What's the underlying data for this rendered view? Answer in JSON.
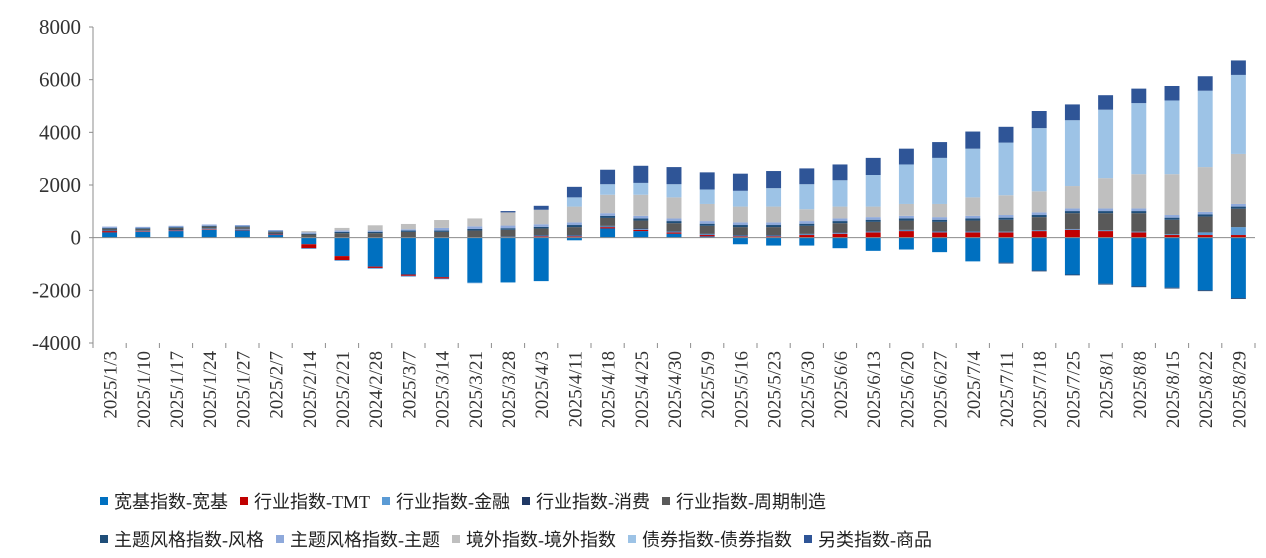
{
  "chart_data": {
    "type": "bar",
    "stacked": true,
    "categories": [
      "2025/1/3",
      "2025/1/10",
      "2025/1/17",
      "2025/1/24",
      "2025/1/27",
      "2025/2/7",
      "2025/2/14",
      "2025/2/21",
      "2024/2/28",
      "2025/3/7",
      "2025/3/14",
      "2025/3/21",
      "2025/3/28",
      "2025/4/3",
      "2025/4/11",
      "2025/4/18",
      "2025/4/25",
      "2025/4/30",
      "2025/5/9",
      "2025/5/16",
      "2025/5/23",
      "2025/5/30",
      "2025/6/6",
      "2025/6/13",
      "2025/6/20",
      "2025/6/27",
      "2025/7/4",
      "2025/7/11",
      "2025/7/18",
      "2025/7/25",
      "2025/8/1",
      "2025/8/8",
      "2025/8/15",
      "2025/8/22",
      "2025/8/29"
    ],
    "ylim": [
      -4000,
      8000
    ],
    "yticks": [
      -4000,
      -2000,
      0,
      2000,
      4000,
      6000,
      8000
    ],
    "legend_position": "bottom",
    "series": [
      {
        "name": "宽基指数-宽基",
        "color": "#0070C0",
        "values": [
          200,
          220,
          250,
          300,
          280,
          100,
          -250,
          -700,
          -1100,
          -1400,
          -1500,
          -1700,
          -1700,
          -1650,
          -100,
          350,
          250,
          150,
          50,
          -250,
          -300,
          -300,
          -400,
          -500,
          -450,
          -550,
          -900,
          -950,
          -1250,
          -1400,
          -1750,
          -1850,
          -1900,
          -2000,
          -2300
        ]
      },
      {
        "name": "行业指数-TMT",
        "color": "#C00000",
        "values": [
          50,
          20,
          20,
          20,
          20,
          20,
          -150,
          -150,
          -50,
          -50,
          -50,
          0,
          0,
          50,
          50,
          50,
          50,
          50,
          50,
          50,
          50,
          100,
          150,
          200,
          250,
          200,
          200,
          200,
          250,
          300,
          250,
          200,
          100,
          100,
          100
        ]
      },
      {
        "name": "行业指数-金融",
        "color": "#5B9BD5",
        "values": [
          20,
          20,
          20,
          20,
          20,
          20,
          -30,
          -30,
          -30,
          -30,
          -30,
          -30,
          30,
          30,
          30,
          30,
          30,
          30,
          30,
          30,
          30,
          30,
          30,
          30,
          30,
          30,
          30,
          30,
          30,
          30,
          30,
          30,
          30,
          100,
          300
        ]
      },
      {
        "name": "行业指数-消费",
        "color": "#1F3864",
        "values": [
          20,
          20,
          20,
          20,
          20,
          20,
          20,
          20,
          20,
          20,
          20,
          20,
          20,
          20,
          20,
          20,
          20,
          20,
          20,
          20,
          20,
          20,
          20,
          20,
          20,
          20,
          20,
          -30,
          -30,
          -30,
          -30,
          -30,
          -30,
          -30,
          -30
        ]
      },
      {
        "name": "行业指数-周期制造",
        "color": "#595959",
        "values": [
          50,
          50,
          60,
          60,
          60,
          50,
          100,
          150,
          150,
          200,
          200,
          250,
          250,
          250,
          300,
          300,
          300,
          300,
          300,
          300,
          300,
          300,
          350,
          350,
          350,
          350,
          400,
          450,
          500,
          600,
          650,
          700,
          550,
          600,
          700
        ]
      },
      {
        "name": "主题风格指数-风格",
        "color": "#1F4E79",
        "values": [
          30,
          30,
          30,
          30,
          30,
          30,
          30,
          50,
          50,
          50,
          50,
          60,
          60,
          60,
          80,
          80,
          80,
          80,
          80,
          80,
          80,
          80,
          80,
          80,
          80,
          80,
          80,
          80,
          80,
          80,
          80,
          80,
          80,
          80,
          80
        ]
      },
      {
        "name": "主题风格指数-主题",
        "color": "#8EA9DB",
        "values": [
          50,
          50,
          50,
          50,
          50,
          50,
          50,
          50,
          50,
          50,
          100,
          100,
          100,
          100,
          100,
          100,
          100,
          100,
          100,
          100,
          100,
          100,
          100,
          100,
          100,
          100,
          100,
          100,
          100,
          100,
          100,
          100,
          100,
          100,
          100
        ]
      },
      {
        "name": "境外指数-境外指数",
        "color": "#BFBFBF",
        "values": [
          0,
          0,
          0,
          0,
          0,
          0,
          50,
          100,
          200,
          200,
          300,
          300,
          500,
          550,
          600,
          700,
          800,
          800,
          650,
          600,
          600,
          450,
          450,
          400,
          450,
          500,
          700,
          750,
          800,
          850,
          1150,
          1300,
          1550,
          1700,
          1900
        ]
      },
      {
        "name": "债券指数-债券指数",
        "color": "#9DC3E6",
        "values": [
          0,
          0,
          0,
          0,
          0,
          0,
          0,
          0,
          0,
          0,
          0,
          0,
          0,
          0,
          350,
          400,
          450,
          500,
          550,
          600,
          700,
          950,
          1000,
          1200,
          1500,
          1750,
          1850,
          2000,
          2400,
          2500,
          2600,
          2700,
          2800,
          2900,
          3000
        ]
      },
      {
        "name": "另类指数-商品",
        "color": "#2F5597",
        "values": [
          0,
          0,
          0,
          0,
          0,
          0,
          0,
          0,
          0,
          0,
          0,
          0,
          50,
          150,
          400,
          550,
          650,
          650,
          650,
          650,
          650,
          600,
          600,
          650,
          600,
          600,
          650,
          600,
          650,
          600,
          550,
          550,
          550,
          550,
          550
        ]
      }
    ]
  }
}
